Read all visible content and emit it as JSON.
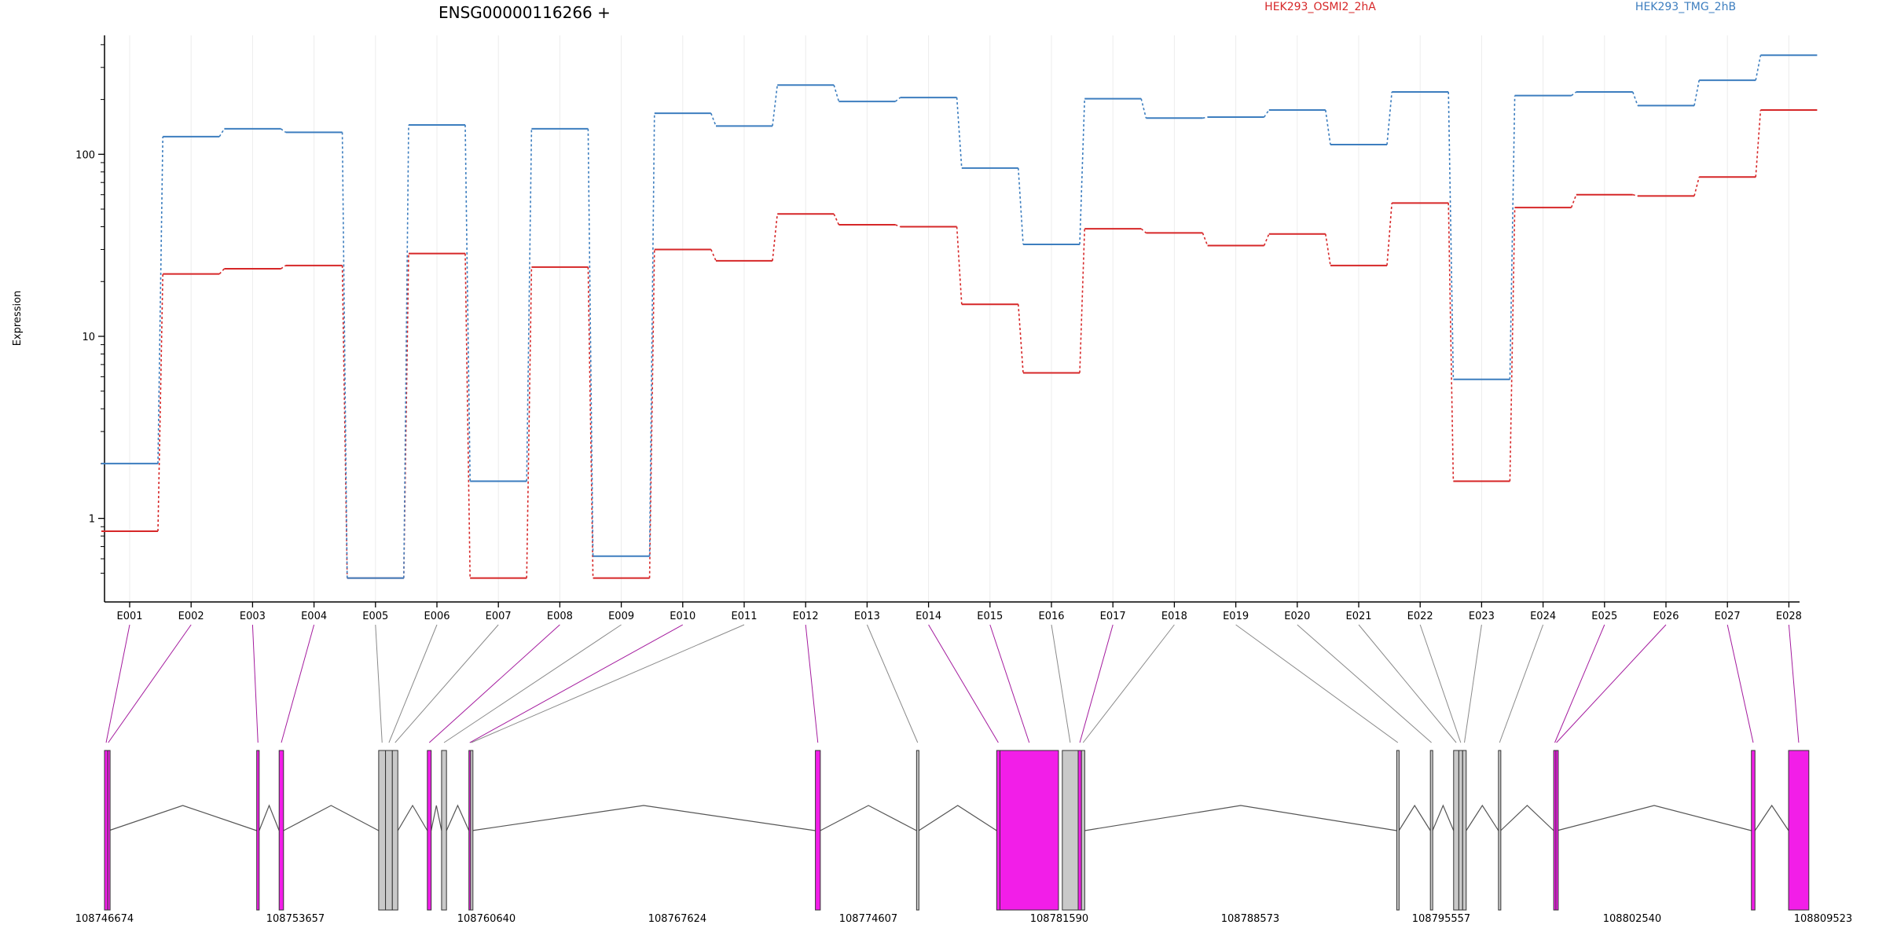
{
  "chart_data": {
    "type": "line",
    "title": "ENSG00000116266 +",
    "xlabel": "",
    "ylabel": "Expression",
    "y_scale": "log",
    "ylim": [
      0.45,
      450
    ],
    "y_ticks": [
      1,
      10,
      100
    ],
    "y_tick_labels": [
      "1",
      "10",
      "100"
    ],
    "grid": "vertical",
    "legend_placement": "top",
    "categories": [
      "E001",
      "E002",
      "E003",
      "E004",
      "E005",
      "E006",
      "E007",
      "E008",
      "E009",
      "E010",
      "E011",
      "E012",
      "E013",
      "E014",
      "E015",
      "E016",
      "E017",
      "E018",
      "E019",
      "E020",
      "E021",
      "E022",
      "E023",
      "E024",
      "E025",
      "E026",
      "E027",
      "E028"
    ],
    "series": [
      {
        "name": "HEK293_OSMI2_2hA",
        "color": "#d62728",
        "values": [
          0.85,
          22,
          23.5,
          24.5,
          0.47,
          28.5,
          0.47,
          24,
          0.47,
          30,
          26,
          47,
          41,
          40,
          15,
          6.3,
          39,
          37,
          31.5,
          36.5,
          24.5,
          54,
          1.6,
          51,
          60,
          59,
          75,
          175
        ]
      },
      {
        "name": "HEK293_TMG_2hB",
        "color": "#3d7ebf",
        "values": [
          2.0,
          125,
          138,
          132,
          0.47,
          145,
          1.6,
          138,
          0.62,
          168,
          143,
          240,
          195,
          205,
          84,
          32,
          202,
          158,
          160,
          175,
          113,
          220,
          5.8,
          210,
          220,
          185,
          255,
          350
        ]
      }
    ],
    "gene_model": {
      "coordinate_labels": [
        "108746674",
        "108753657",
        "108760640",
        "108767624",
        "108774607",
        "108781590",
        "108788573",
        "108795557",
        "108802540",
        "108809523"
      ],
      "genome_range": [
        108746674,
        108809523
      ],
      "highlight_color": "#f21ee8",
      "exons": [
        {
          "id": "E001",
          "start": 108746674,
          "end": 108746792,
          "highlight": true
        },
        {
          "id": "E002",
          "start": 108746792,
          "end": 108746830,
          "highlight": true
        },
        {
          "id": "E003",
          "start": 108752240,
          "end": 108752330,
          "highlight": true
        },
        {
          "id": "E004",
          "start": 108753060,
          "end": 108753220,
          "highlight": true
        },
        {
          "id": "E005",
          "start": 108756700,
          "end": 108756950,
          "highlight": false
        },
        {
          "id": "E006",
          "start": 108756950,
          "end": 108757200,
          "highlight": false
        },
        {
          "id": "E007",
          "start": 108757200,
          "end": 108757400,
          "highlight": false
        },
        {
          "id": "E008",
          "start": 108758480,
          "end": 108758620,
          "highlight": true
        },
        {
          "id": "E009",
          "start": 108759000,
          "end": 108759180,
          "highlight": false
        },
        {
          "id": "E010",
          "start": 108760000,
          "end": 108760060,
          "highlight": true
        },
        {
          "id": "E011",
          "start": 108760060,
          "end": 108760110,
          "highlight": false
        },
        {
          "id": "E012",
          "start": 108772670,
          "end": 108772850,
          "highlight": true
        },
        {
          "id": "E013",
          "start": 108776370,
          "end": 108776450,
          "highlight": false
        },
        {
          "id": "E014",
          "start": 108779300,
          "end": 108779420,
          "highlight": true
        },
        {
          "id": "E015",
          "start": 108779420,
          "end": 108781560,
          "highlight": true
        },
        {
          "id": "E016",
          "start": 108781700,
          "end": 108782280,
          "highlight": false
        },
        {
          "id": "E017",
          "start": 108782280,
          "end": 108782400,
          "highlight": true
        },
        {
          "id": "E018",
          "start": 108782400,
          "end": 108782520,
          "highlight": false
        },
        {
          "id": "E019",
          "start": 108793930,
          "end": 108794010,
          "highlight": false
        },
        {
          "id": "E020",
          "start": 108795160,
          "end": 108795240,
          "highlight": false
        },
        {
          "id": "E021",
          "start": 108796010,
          "end": 108796200,
          "highlight": false
        },
        {
          "id": "E022",
          "start": 108796200,
          "end": 108796340,
          "highlight": false
        },
        {
          "id": "E023",
          "start": 108796340,
          "end": 108796470,
          "highlight": false
        },
        {
          "id": "E024",
          "start": 108797650,
          "end": 108797730,
          "highlight": false
        },
        {
          "id": "E025",
          "start": 108799670,
          "end": 108799750,
          "highlight": true
        },
        {
          "id": "E026",
          "start": 108799750,
          "end": 108799790,
          "highlight": true
        },
        {
          "id": "E027",
          "start": 108806900,
          "end": 108807030,
          "highlight": true
        },
        {
          "id": "E028",
          "start": 108808260,
          "end": 108809000,
          "highlight": true
        }
      ]
    }
  }
}
